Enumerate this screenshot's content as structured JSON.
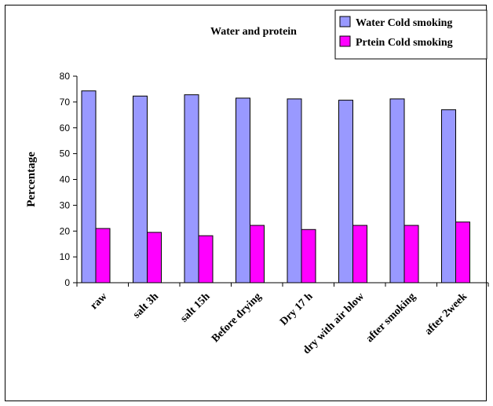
{
  "chart_data": {
    "type": "bar",
    "title": "Water and protein",
    "xlabel": "",
    "ylabel": "Percentage",
    "ylim": [
      0,
      80
    ],
    "yticks": [
      0,
      10,
      20,
      30,
      40,
      50,
      60,
      70,
      80
    ],
    "grid": false,
    "legend_position": "top-right",
    "categories": [
      "raw",
      "salt 3h",
      "salt 15h",
      "Before drying",
      "Dry 17 h",
      "dry with air blow",
      "after smoking",
      "after 2week"
    ],
    "series": [
      {
        "name": "Water Cold smoking",
        "color": "#9999ff",
        "values": [
          74.3,
          72.3,
          72.8,
          71.5,
          71.2,
          70.7,
          71.2,
          67.0
        ]
      },
      {
        "name": "Prtein Cold smoking",
        "color": "#ff00ff",
        "values": [
          21.0,
          19.5,
          18.2,
          22.2,
          20.6,
          22.2,
          22.2,
          23.5
        ]
      }
    ]
  }
}
